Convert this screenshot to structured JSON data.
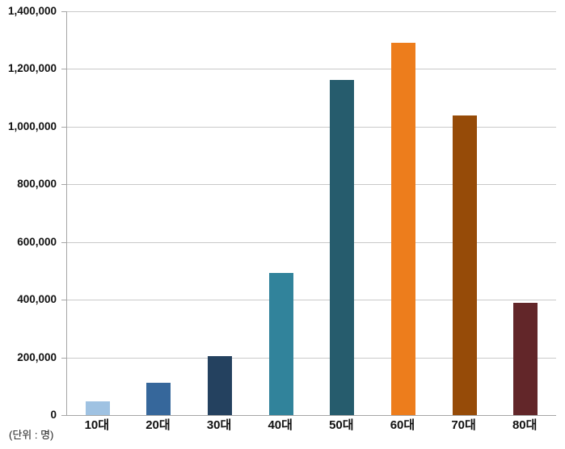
{
  "chart_data": {
    "type": "bar",
    "title": "",
    "xlabel": "",
    "ylabel": "",
    "unit_label": "(단위 : 명)",
    "categories": [
      "10대",
      "20대",
      "30대",
      "40대",
      "50대",
      "60대",
      "70대",
      "80대"
    ],
    "values": [
      48000,
      112000,
      205000,
      492000,
      1162000,
      1291000,
      1040000,
      389000
    ],
    "bar_colors": [
      "#9fc2e2",
      "#36679b",
      "#24415f",
      "#31839b",
      "#265c6d",
      "#ed7d1c",
      "#964b08",
      "#622629"
    ],
    "ylim": [
      0,
      1400000
    ],
    "y_ticks": [
      {
        "value": 0,
        "label": "0"
      },
      {
        "value": 200000,
        "label": "200,000"
      },
      {
        "value": 400000,
        "label": "400,000"
      },
      {
        "value": 600000,
        "label": "600,000"
      },
      {
        "value": 800000,
        "label": "800,000"
      },
      {
        "value": 1000000,
        "label": "1,000,000"
      },
      {
        "value": 1200000,
        "label": "1,200,000"
      },
      {
        "value": 1400000,
        "label": "1,400,000"
      }
    ],
    "grid": "horizontal",
    "legend": "none",
    "colors": {
      "background": "#ffffff",
      "gridline": "#c9c9c9",
      "axis": "#a6a6a6",
      "label_text": "#111111"
    }
  }
}
